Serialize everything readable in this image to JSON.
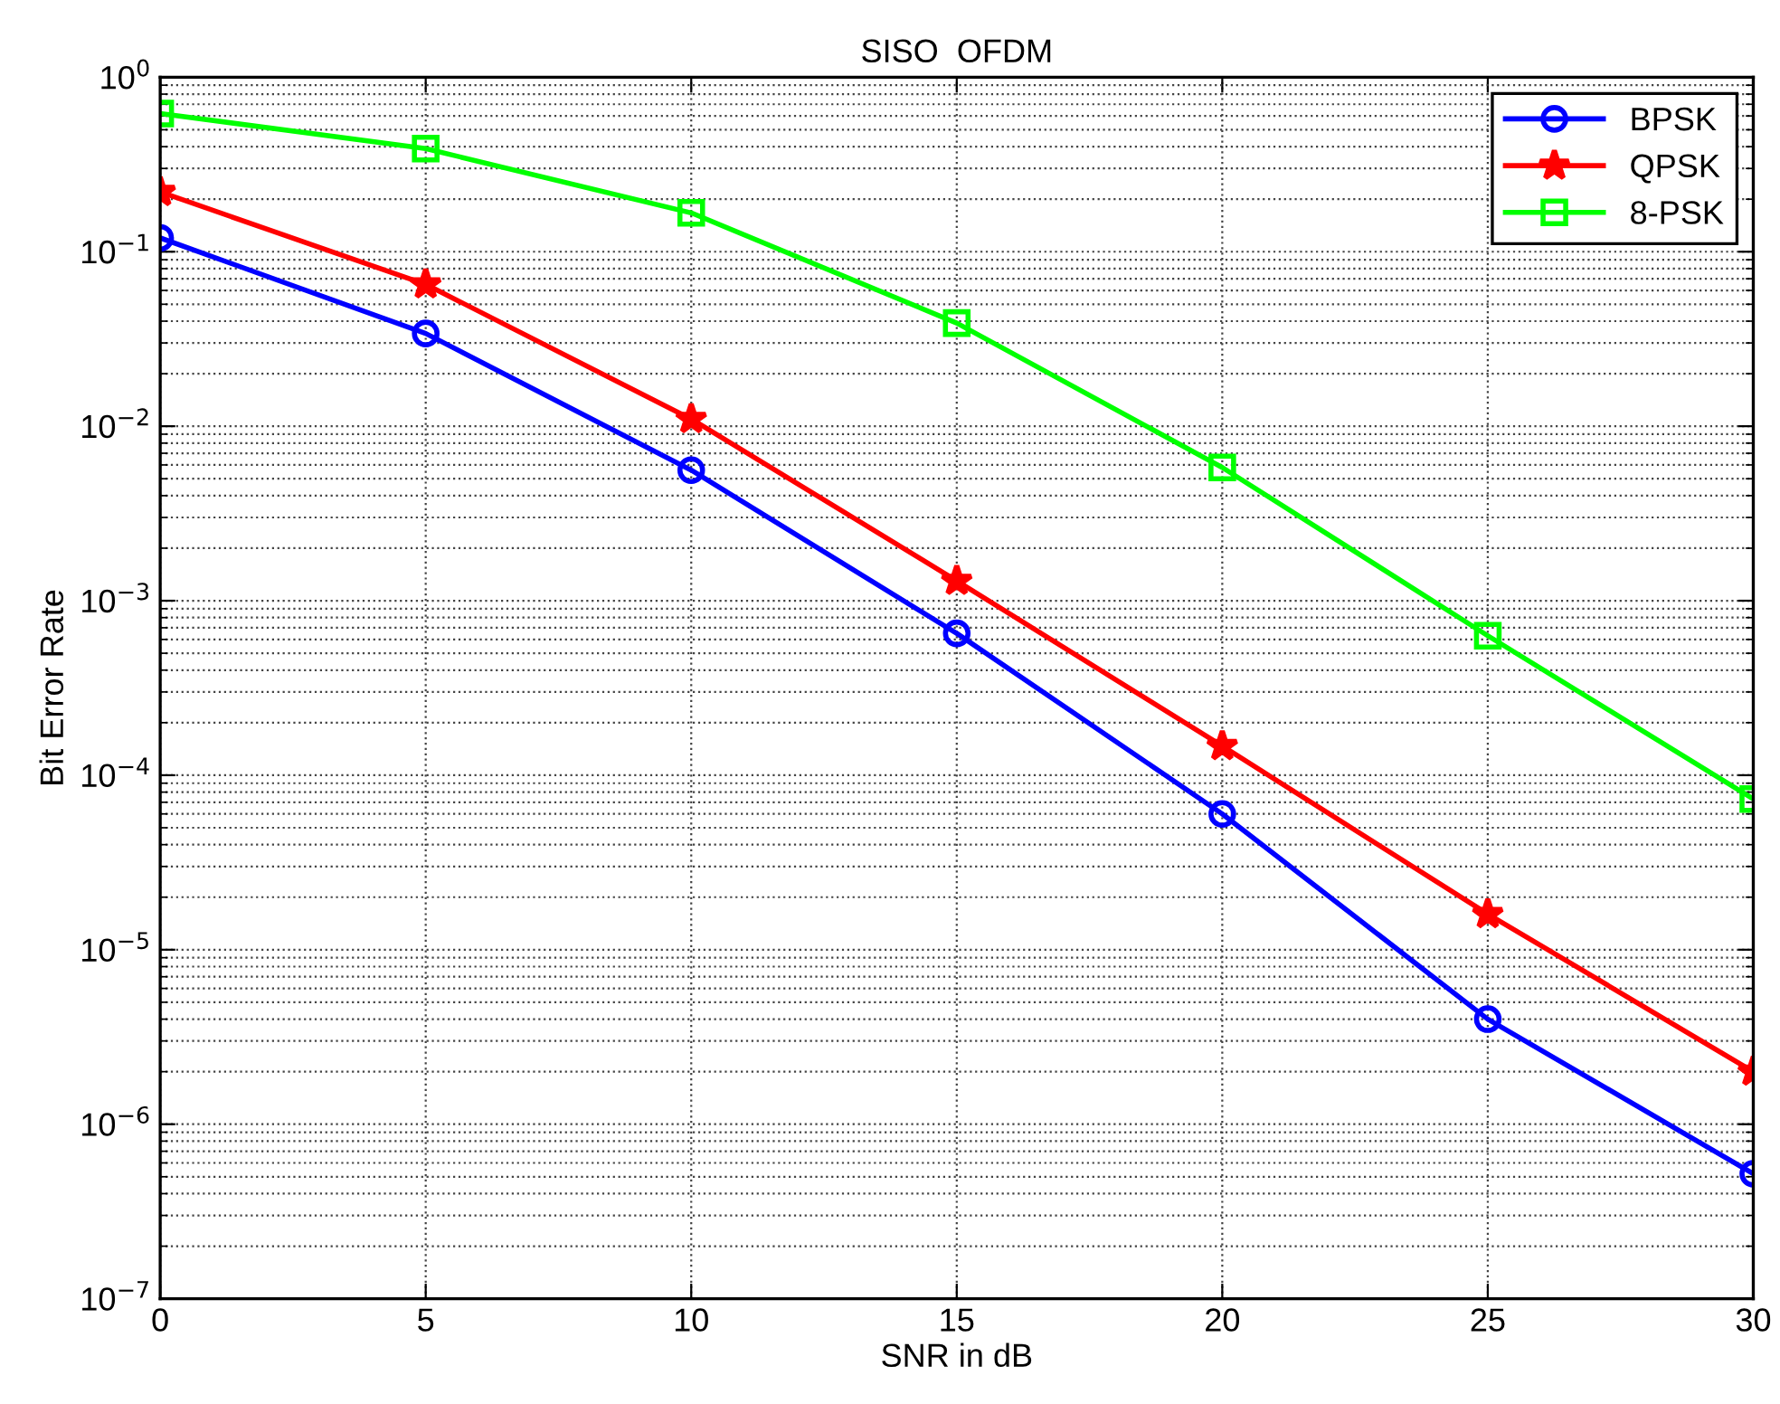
{
  "chart_data": {
    "type": "line",
    "title": "SISO  OFDM",
    "xlabel": "SNR in dB",
    "ylabel": "Bit Error Rate",
    "x": [
      0,
      5,
      10,
      15,
      20,
      25,
      30
    ],
    "series": [
      {
        "name": "BPSK",
        "color": "#0000ff",
        "marker": "circle",
        "values": [
          0.12,
          0.034,
          0.0056,
          0.00065,
          6e-05,
          4e-06,
          5.2e-07
        ]
      },
      {
        "name": "QPSK",
        "color": "#ff0000",
        "marker": "star",
        "values": [
          0.22,
          0.065,
          0.011,
          0.0013,
          0.000147,
          1.6e-05,
          2e-06
        ]
      },
      {
        "name": "8-PSK",
        "color": "#00ff00",
        "marker": "square",
        "values": [
          0.62,
          0.39,
          0.167,
          0.039,
          0.0058,
          0.00063,
          7.3e-05
        ]
      }
    ],
    "log": "y",
    "xlim": [
      0,
      30
    ],
    "ylim": [
      1e-07,
      1
    ],
    "xticks": [
      0,
      5,
      10,
      15,
      20,
      25,
      30
    ],
    "yticks": [
      {
        "value": 1e-07,
        "label": "10$^{−7}$"
      },
      {
        "value": 1e-06,
        "label": "10$^{−6}$"
      },
      {
        "value": 1e-05,
        "label": "10$^{−5}$"
      },
      {
        "value": 0.0001,
        "label": "10$^{−4}$"
      },
      {
        "value": 0.001,
        "label": "10$^{−3}$"
      },
      {
        "value": 0.01,
        "label": "10$^{−2}$"
      },
      {
        "value": 0.1,
        "label": "10$^{−1}$"
      },
      {
        "value": 1,
        "label": "10$^{0}$"
      }
    ],
    "grid": true,
    "legend": "top right",
    "line_style": "solid"
  }
}
